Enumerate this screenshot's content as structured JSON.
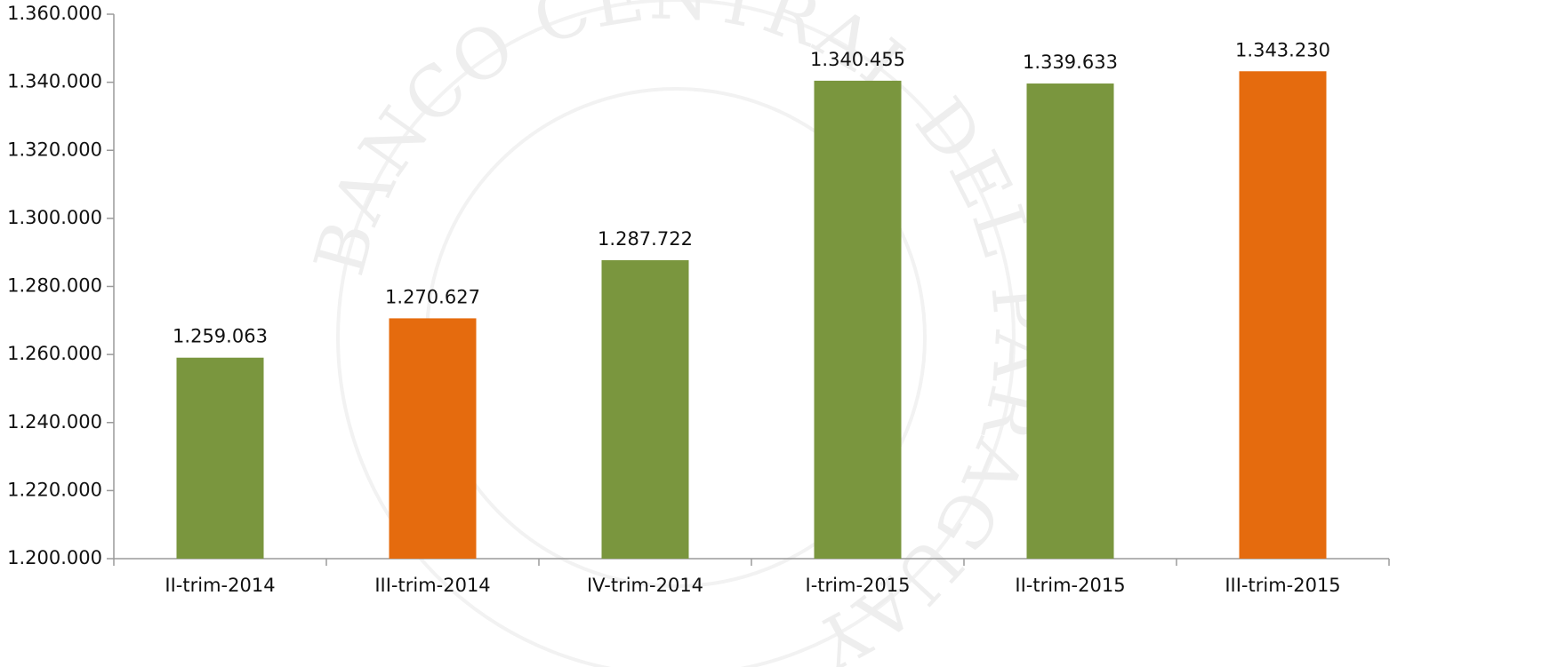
{
  "chart_data": {
    "type": "bar",
    "watermark": "BANCO CENTRAL DEL PARAGUAY",
    "categories": [
      "II-trim-2014",
      "III-trim-2014",
      "IV-trim-2014",
      "I-trim-2015",
      "II-trim-2015",
      "III-trim-2015"
    ],
    "values": [
      1259063,
      1270627,
      1287722,
      1340455,
      1339633,
      1343230
    ],
    "value_labels": [
      "1.259.063",
      "1.270.627",
      "1.287.722",
      "1.340.455",
      "1.339.633",
      "1.343.230"
    ],
    "colors": [
      "#7a963e",
      "#e56b0e",
      "#7a963e",
      "#7a963e",
      "#7a963e",
      "#e56b0e"
    ],
    "ylim": [
      1200000,
      1360000
    ],
    "yticks": [
      {
        "value": 1200000,
        "label": "1.200.000"
      },
      {
        "value": 1220000,
        "label": "1.220.000"
      },
      {
        "value": 1240000,
        "label": "1.240.000"
      },
      {
        "value": 1260000,
        "label": "1.260.000"
      },
      {
        "value": 1280000,
        "label": "1.280.000"
      },
      {
        "value": 1300000,
        "label": "1.300.000"
      },
      {
        "value": 1320000,
        "label": "1.320.000"
      },
      {
        "value": 1340000,
        "label": "1.340.000"
      },
      {
        "value": 1360000,
        "label": "1.360.000"
      }
    ],
    "grid": false
  }
}
